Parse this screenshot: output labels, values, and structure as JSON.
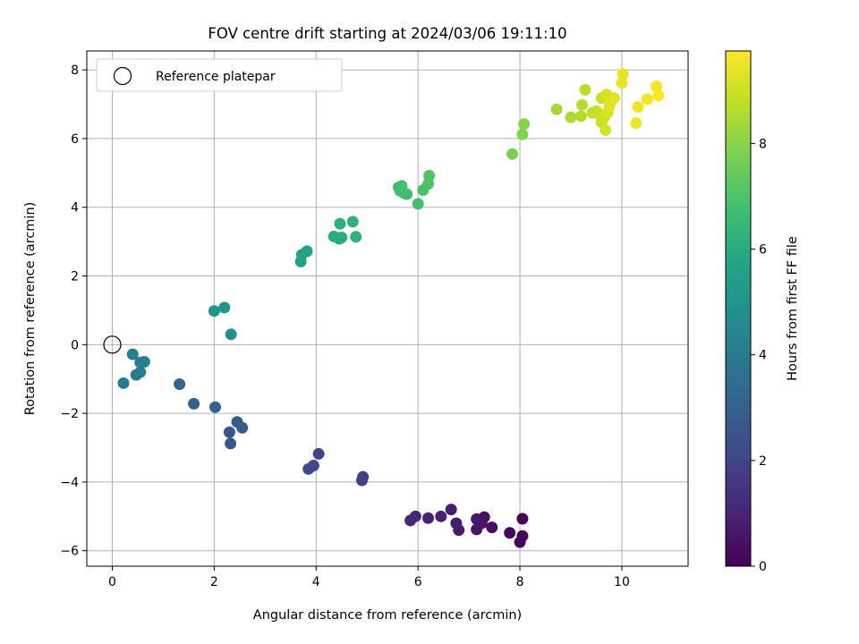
{
  "chart_data": {
    "type": "scatter",
    "title": "FOV centre drift starting at 2024/03/06 19:11:10",
    "xlabel": "Angular distance from reference (arcmin)",
    "ylabel": "Rotation from reference (arcmin)",
    "xlim": [
      -0.5,
      11.3
    ],
    "ylim": [
      -6.45,
      8.55
    ],
    "xticks": [
      0,
      2,
      4,
      6,
      8,
      10
    ],
    "yticks": [
      -6,
      -4,
      -2,
      0,
      2,
      4,
      6,
      8
    ],
    "grid": true,
    "legend": {
      "label": "Reference platepar",
      "placement": "top-left"
    },
    "reference_point": {
      "x": 0,
      "y": 0
    },
    "colorbar": {
      "label": "Hours from first FF file",
      "range": [
        0,
        9.75
      ],
      "ticks": [
        0,
        2,
        4,
        6,
        8
      ],
      "colormap": "viridis"
    },
    "points": [
      {
        "x": 8.05,
        "y": -5.07,
        "h": 0.05
      },
      {
        "x": 8.05,
        "y": -5.57,
        "h": 0.1
      },
      {
        "x": 8.0,
        "y": -5.75,
        "h": 0.15
      },
      {
        "x": 7.8,
        "y": -5.48,
        "h": 0.25
      },
      {
        "x": 7.45,
        "y": -5.32,
        "h": 0.35
      },
      {
        "x": 7.3,
        "y": -5.02,
        "h": 0.45
      },
      {
        "x": 7.25,
        "y": -5.2,
        "h": 0.5
      },
      {
        "x": 7.15,
        "y": -5.38,
        "h": 0.55
      },
      {
        "x": 7.15,
        "y": -5.08,
        "h": 0.6
      },
      {
        "x": 6.8,
        "y": -5.4,
        "h": 0.7
      },
      {
        "x": 6.75,
        "y": -5.2,
        "h": 0.75
      },
      {
        "x": 6.65,
        "y": -4.8,
        "h": 0.8
      },
      {
        "x": 6.45,
        "y": -5.0,
        "h": 0.9
      },
      {
        "x": 6.2,
        "y": -5.05,
        "h": 0.95
      },
      {
        "x": 5.95,
        "y": -5.0,
        "h": 1.05
      },
      {
        "x": 5.85,
        "y": -5.12,
        "h": 1.1
      },
      {
        "x": 4.92,
        "y": -3.85,
        "h": 1.8
      },
      {
        "x": 4.9,
        "y": -3.95,
        "h": 1.85
      },
      {
        "x": 4.05,
        "y": -3.18,
        "h": 2.0
      },
      {
        "x": 3.95,
        "y": -3.52,
        "h": 2.05
      },
      {
        "x": 3.85,
        "y": -3.62,
        "h": 2.1
      },
      {
        "x": 2.32,
        "y": -2.88,
        "h": 2.6
      },
      {
        "x": 2.3,
        "y": -2.55,
        "h": 2.65
      },
      {
        "x": 2.55,
        "y": -2.42,
        "h": 2.7
      },
      {
        "x": 2.45,
        "y": -2.25,
        "h": 2.75
      },
      {
        "x": 2.02,
        "y": -1.82,
        "h": 3.0
      },
      {
        "x": 1.6,
        "y": -1.72,
        "h": 3.1
      },
      {
        "x": 1.32,
        "y": -1.15,
        "h": 3.2
      },
      {
        "x": 0.22,
        "y": -1.12,
        "h": 4.0
      },
      {
        "x": 0.47,
        "y": -0.88,
        "h": 4.05
      },
      {
        "x": 0.55,
        "y": -0.8,
        "h": 4.1
      },
      {
        "x": 0.55,
        "y": -0.52,
        "h": 4.15
      },
      {
        "x": 0.63,
        "y": -0.5,
        "h": 4.2
      },
      {
        "x": 0.4,
        "y": -0.28,
        "h": 4.25
      },
      {
        "x": 2.33,
        "y": 0.3,
        "h": 4.9
      },
      {
        "x": 2.0,
        "y": 0.98,
        "h": 5.0
      },
      {
        "x": 2.2,
        "y": 1.08,
        "h": 5.05
      },
      {
        "x": 3.7,
        "y": 2.42,
        "h": 5.6
      },
      {
        "x": 3.72,
        "y": 2.62,
        "h": 5.65
      },
      {
        "x": 3.82,
        "y": 2.72,
        "h": 5.7
      },
      {
        "x": 4.35,
        "y": 3.15,
        "h": 6.0
      },
      {
        "x": 4.45,
        "y": 3.08,
        "h": 6.05
      },
      {
        "x": 4.5,
        "y": 3.12,
        "h": 6.1
      },
      {
        "x": 4.47,
        "y": 3.52,
        "h": 6.15
      },
      {
        "x": 4.72,
        "y": 3.58,
        "h": 6.2
      },
      {
        "x": 4.78,
        "y": 3.14,
        "h": 6.25
      },
      {
        "x": 5.62,
        "y": 4.58,
        "h": 6.6
      },
      {
        "x": 5.65,
        "y": 4.48,
        "h": 6.65
      },
      {
        "x": 5.72,
        "y": 4.42,
        "h": 6.7
      },
      {
        "x": 5.78,
        "y": 4.38,
        "h": 6.75
      },
      {
        "x": 5.68,
        "y": 4.62,
        "h": 6.8
      },
      {
        "x": 6.0,
        "y": 4.1,
        "h": 6.85
      },
      {
        "x": 6.1,
        "y": 4.5,
        "h": 6.95
      },
      {
        "x": 6.2,
        "y": 4.68,
        "h": 7.0
      },
      {
        "x": 6.22,
        "y": 4.92,
        "h": 7.05
      },
      {
        "x": 7.85,
        "y": 5.55,
        "h": 7.8
      },
      {
        "x": 8.05,
        "y": 6.12,
        "h": 7.9
      },
      {
        "x": 8.08,
        "y": 6.42,
        "h": 7.95
      },
      {
        "x": 8.72,
        "y": 6.85,
        "h": 8.4
      },
      {
        "x": 9.0,
        "y": 6.62,
        "h": 8.5
      },
      {
        "x": 9.2,
        "y": 6.65,
        "h": 8.6
      },
      {
        "x": 9.22,
        "y": 6.98,
        "h": 8.65
      },
      {
        "x": 9.28,
        "y": 7.42,
        "h": 8.7
      },
      {
        "x": 9.42,
        "y": 6.75,
        "h": 8.8
      },
      {
        "x": 9.5,
        "y": 6.8,
        "h": 8.85
      },
      {
        "x": 9.55,
        "y": 6.72,
        "h": 8.9
      },
      {
        "x": 9.6,
        "y": 6.48,
        "h": 8.95
      },
      {
        "x": 9.6,
        "y": 7.18,
        "h": 9.0
      },
      {
        "x": 9.65,
        "y": 6.62,
        "h": 9.05
      },
      {
        "x": 9.68,
        "y": 6.25,
        "h": 9.1
      },
      {
        "x": 9.7,
        "y": 7.28,
        "h": 9.15
      },
      {
        "x": 9.72,
        "y": 6.75,
        "h": 9.2
      },
      {
        "x": 9.75,
        "y": 6.92,
        "h": 9.25
      },
      {
        "x": 9.78,
        "y": 7.05,
        "h": 9.3
      },
      {
        "x": 9.85,
        "y": 7.18,
        "h": 9.35
      },
      {
        "x": 10.0,
        "y": 7.62,
        "h": 9.4
      },
      {
        "x": 10.02,
        "y": 7.88,
        "h": 9.45
      },
      {
        "x": 10.28,
        "y": 6.45,
        "h": 9.5
      },
      {
        "x": 10.32,
        "y": 6.92,
        "h": 9.55
      },
      {
        "x": 10.5,
        "y": 7.15,
        "h": 9.6
      },
      {
        "x": 10.68,
        "y": 7.52,
        "h": 9.65
      },
      {
        "x": 10.72,
        "y": 7.25,
        "h": 9.7
      }
    ]
  }
}
